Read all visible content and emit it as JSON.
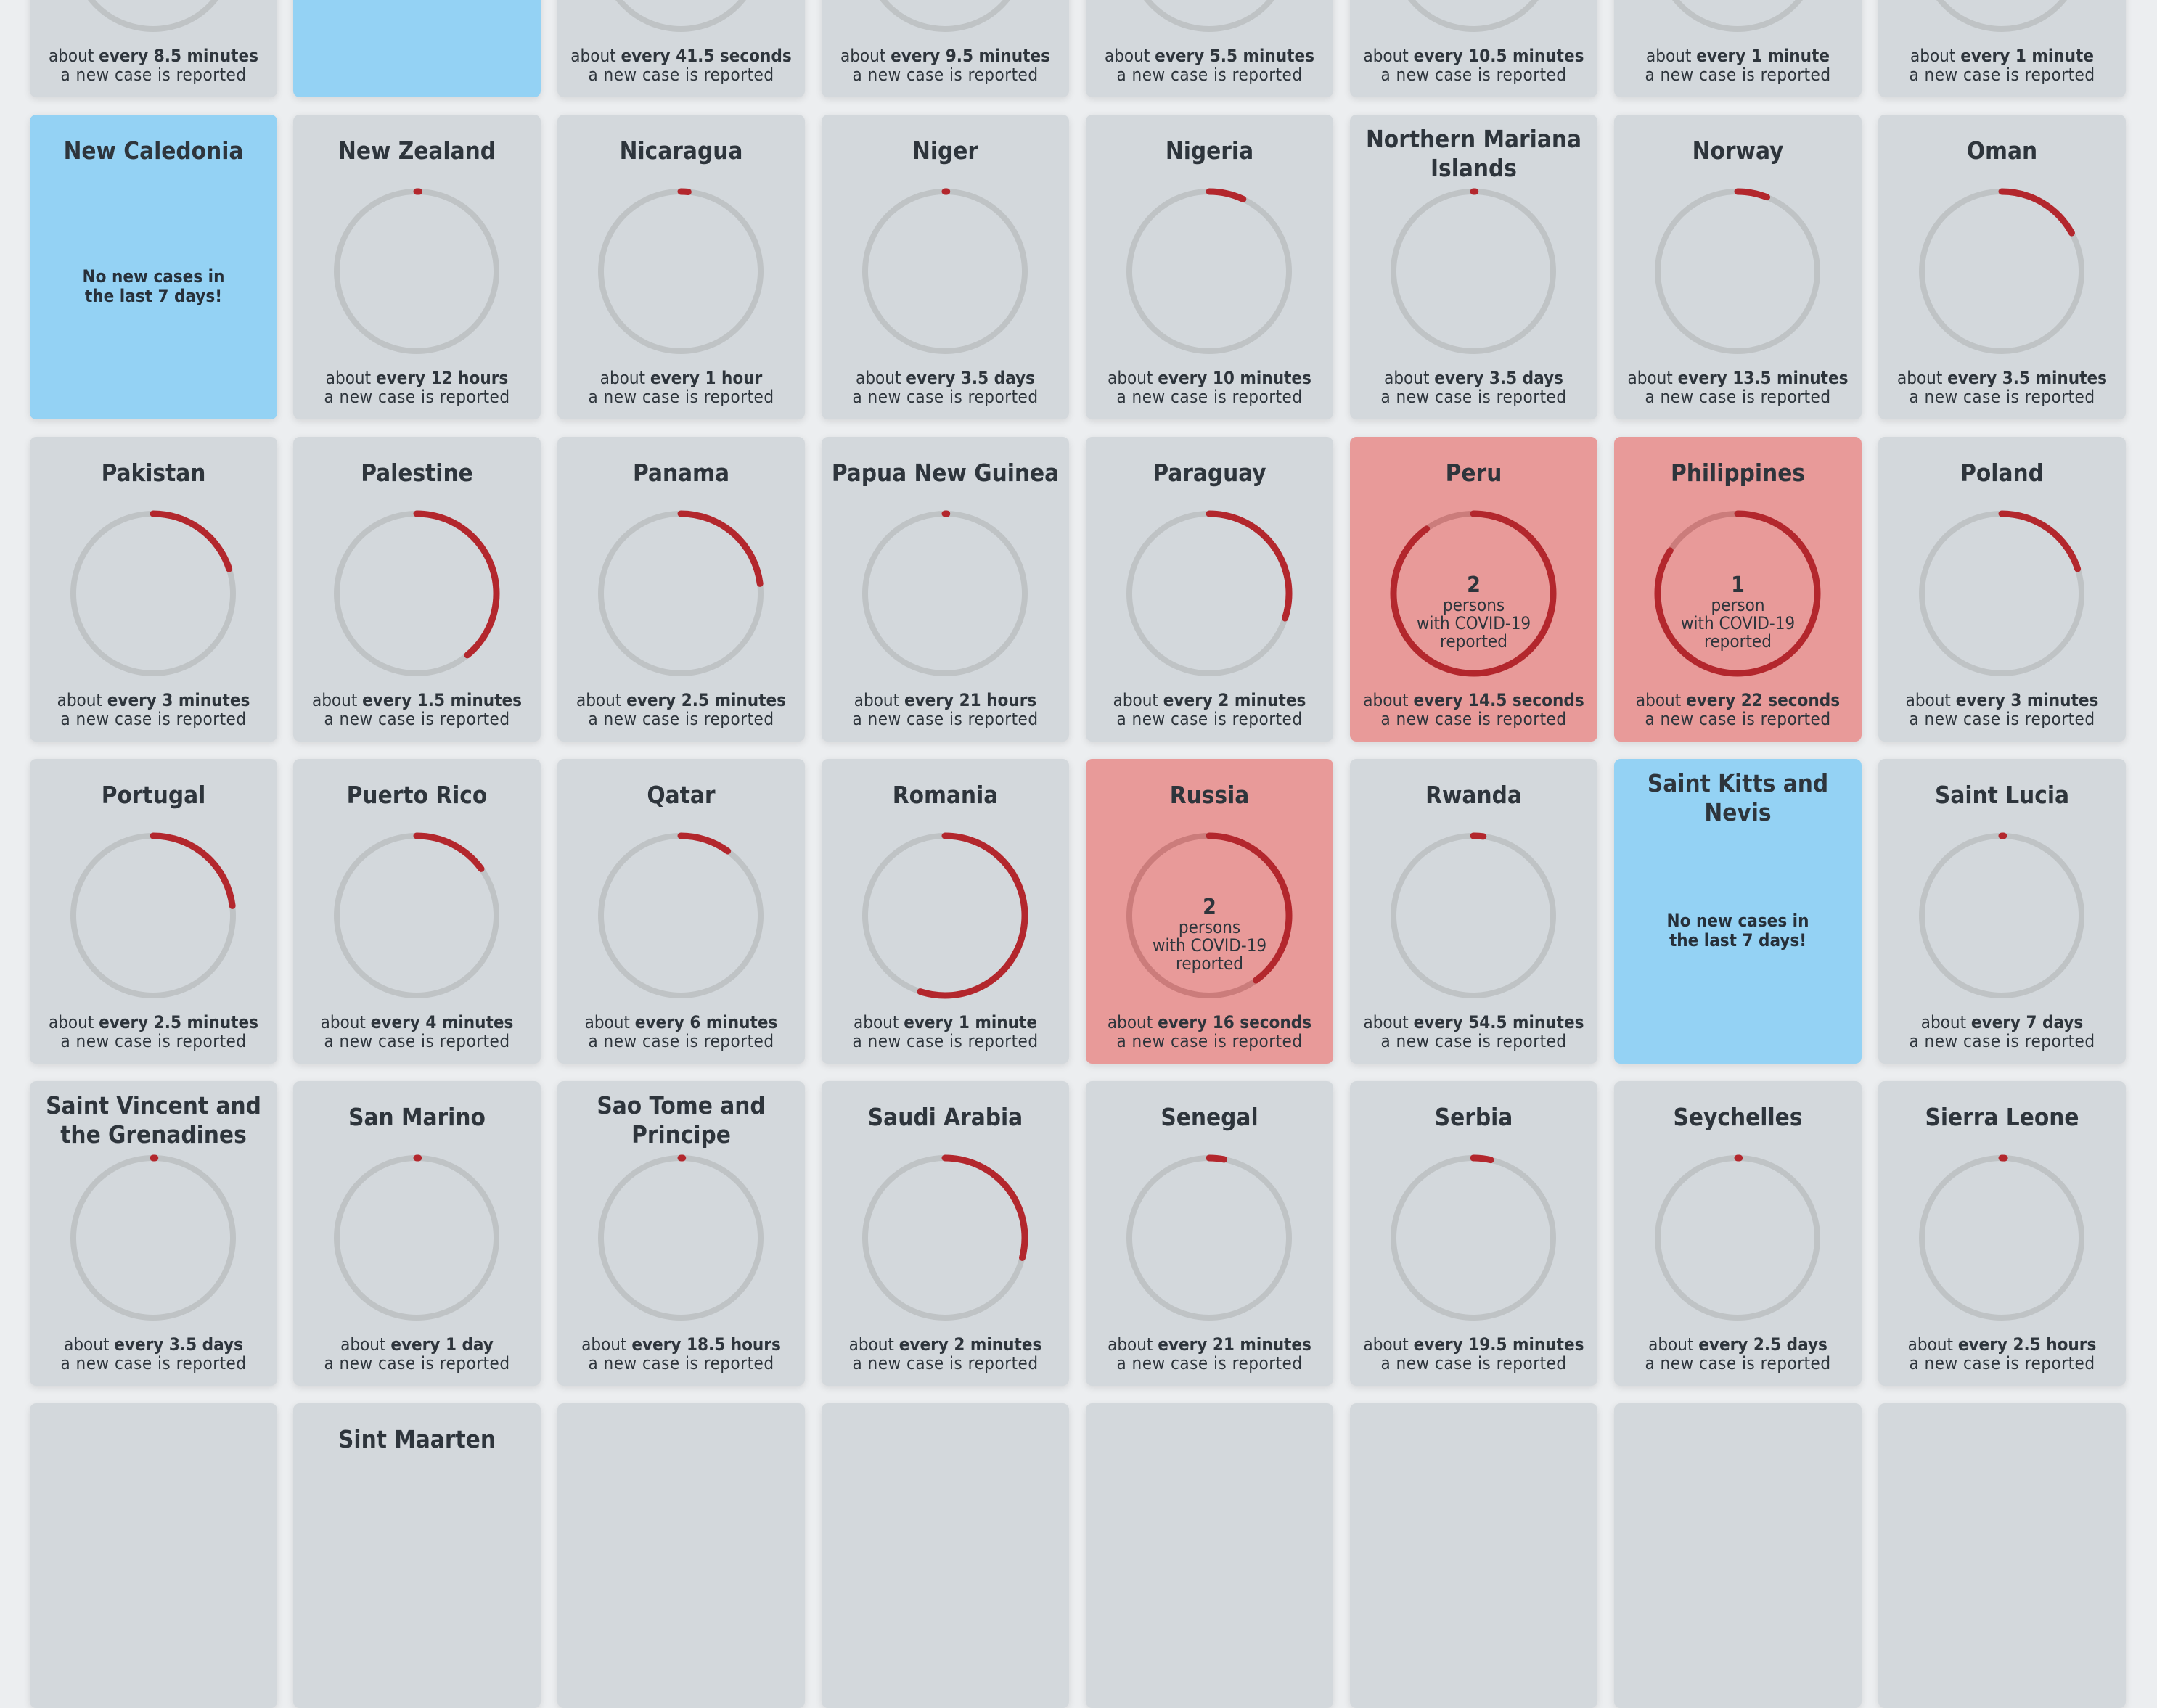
{
  "footer_prefix": "about",
  "footer_every": "every",
  "footer_line2": "a new case is reported",
  "no_cases_text": "No new cases in the last 7 days!",
  "colors": {
    "card": "#d3d8dc",
    "card_no_cases": "#94d2f4",
    "card_live": "#e89a99",
    "ring_track": "#bfc3c5",
    "ring_arc": "#b3272d"
  },
  "rows": [
    [
      {
        "name": "",
        "interval": "8.5 minutes",
        "progress": 0.0,
        "cut": true
      },
      {
        "name": "",
        "no_cases": true,
        "cut": true
      },
      {
        "name": "",
        "interval": "41.5 seconds",
        "progress": 0.0,
        "cut": true
      },
      {
        "name": "",
        "interval": "9.5 minutes",
        "progress": 0.0,
        "cut": true
      },
      {
        "name": "",
        "interval": "5.5 minutes",
        "progress": 0.0,
        "cut": true
      },
      {
        "name": "",
        "interval": "10.5 minutes",
        "progress": 0.0,
        "cut": true
      },
      {
        "name": "",
        "interval": "1 minute",
        "progress": 0.0,
        "cut": true
      },
      {
        "name": "",
        "interval": "1 minute",
        "progress": 0.0,
        "cut": true
      }
    ],
    [
      {
        "name": "New Caledonia",
        "no_cases": true
      },
      {
        "name": "New Zealand",
        "interval": "12 hours",
        "progress": 0.005
      },
      {
        "name": "Nicaragua",
        "interval": "1 hour",
        "progress": 0.015
      },
      {
        "name": "Niger",
        "interval": "3.5 days",
        "progress": 0.004
      },
      {
        "name": "Nigeria",
        "interval": "10 minutes",
        "progress": 0.07
      },
      {
        "name": "Northern Mariana Islands",
        "interval": "3.5 days",
        "progress": 0.004
      },
      {
        "name": "Norway",
        "interval": "13.5 minutes",
        "progress": 0.06
      },
      {
        "name": "Oman",
        "interval": "3.5 minutes",
        "progress": 0.17
      }
    ],
    [
      {
        "name": "Pakistan",
        "interval": "3 minutes",
        "progress": 0.2
      },
      {
        "name": "Palestine",
        "interval": "1.5 minutes",
        "progress": 0.39
      },
      {
        "name": "Panama",
        "interval": "2.5 minutes",
        "progress": 0.23
      },
      {
        "name": "Papua New Guinea",
        "interval": "21 hours",
        "progress": 0.004
      },
      {
        "name": "Paraguay",
        "interval": "2 minutes",
        "progress": 0.3
      },
      {
        "name": "Peru",
        "interval": "14.5 seconds",
        "progress": 0.9,
        "live": true,
        "count": "2",
        "unit": "persons",
        "line2": "with COVID-19",
        "line3": "reported"
      },
      {
        "name": "Philippines",
        "interval": "22 seconds",
        "progress": 0.84,
        "live": true,
        "count": "1",
        "unit": "person",
        "line2": "with COVID-19",
        "line3": "reported"
      },
      {
        "name": "Poland",
        "interval": "3 minutes",
        "progress": 0.2
      }
    ],
    [
      {
        "name": "Portugal",
        "interval": "2.5 minutes",
        "progress": 0.23
      },
      {
        "name": "Puerto Rico",
        "interval": "4 minutes",
        "progress": 0.15
      },
      {
        "name": "Qatar",
        "interval": "6 minutes",
        "progress": 0.1
      },
      {
        "name": "Romania",
        "interval": "1 minute",
        "progress": 0.55
      },
      {
        "name": "Russia",
        "interval": "16 seconds",
        "progress": 0.4,
        "live": true,
        "count": "2",
        "unit": "persons",
        "line2": "with COVID-19",
        "line3": "reported"
      },
      {
        "name": "Rwanda",
        "interval": "54.5 minutes",
        "progress": 0.02
      },
      {
        "name": "Saint Kitts and Nevis",
        "no_cases": true
      },
      {
        "name": "Saint Lucia",
        "interval": "7 days",
        "progress": 0.003
      }
    ],
    [
      {
        "name": "Saint Vincent and the Grenadines",
        "interval": "3.5 days",
        "progress": 0.004
      },
      {
        "name": "San Marino",
        "interval": "1 day",
        "progress": 0.004
      },
      {
        "name": "Sao Tome and Principe",
        "interval": "18.5 hours",
        "progress": 0.004
      },
      {
        "name": "Saudi Arabia",
        "interval": "2 minutes",
        "progress": 0.29
      },
      {
        "name": "Senegal",
        "interval": "21 minutes",
        "progress": 0.03
      },
      {
        "name": "Serbia",
        "interval": "19.5 minutes",
        "progress": 0.035
      },
      {
        "name": "Seychelles",
        "interval": "2.5 days",
        "progress": 0.004
      },
      {
        "name": "Sierra Leone",
        "interval": "2.5 hours",
        "progress": 0.006
      }
    ],
    [
      {
        "name": "",
        "cut": true
      },
      {
        "name": "Sint Maarten",
        "cut": true
      },
      {
        "name": "",
        "cut": true
      },
      {
        "name": "",
        "cut": true
      },
      {
        "name": "",
        "cut": true
      },
      {
        "name": "",
        "cut": true
      },
      {
        "name": "",
        "cut": true
      },
      {
        "name": "",
        "cut": true
      }
    ]
  ]
}
